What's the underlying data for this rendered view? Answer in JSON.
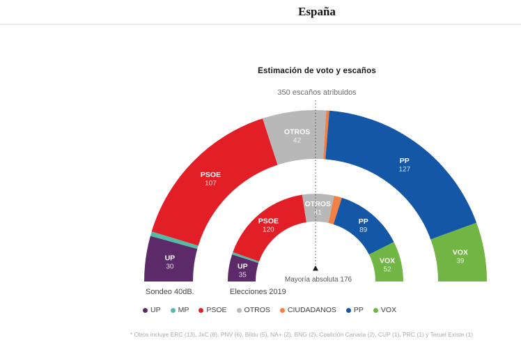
{
  "header": {
    "title": "España"
  },
  "chart_data": {
    "type": "half-donut",
    "title": "Estimación de voto y escaños",
    "subtitle": "350 escaños atribuidos",
    "total_seats": 350,
    "majority_seats": 176,
    "majority_label": "Mayoría absoluta 176",
    "colors": {
      "UP": "#5c2a69",
      "MP": "#56baa5",
      "PSOE": "#e21f26",
      "OTROS": "#b8b8b8",
      "CIUDADANOS": "#f08044",
      "PP": "#1457a6",
      "VOX": "#71b544"
    },
    "rings": [
      {
        "caption": "Sondeo 40dB.",
        "position": "outer",
        "slices": [
          {
            "party": "UP",
            "seats": 30,
            "show_label": true
          },
          {
            "party": "MP",
            "seats": 3,
            "show_label": false
          },
          {
            "party": "PSOE",
            "seats": 107,
            "show_label": true
          },
          {
            "party": "OTROS",
            "seats": 42,
            "show_label": true
          },
          {
            "party": "CIUDADANOS",
            "seats": 2,
            "show_label": false
          },
          {
            "party": "PP",
            "seats": 127,
            "show_label": true
          },
          {
            "party": "VOX",
            "seats": 39,
            "show_label": true
          }
        ]
      },
      {
        "caption": "Elecciones 2019",
        "position": "inner",
        "slices": [
          {
            "party": "UP",
            "seats": 35,
            "show_label": true
          },
          {
            "party": "MP",
            "seats": 3,
            "show_label": false
          },
          {
            "party": "PSOE",
            "seats": 120,
            "show_label": true
          },
          {
            "party": "OTROS",
            "seats": 41,
            "show_label": true
          },
          {
            "party": "CIUDADANOS",
            "seats": 10,
            "show_label": false
          },
          {
            "party": "PP",
            "seats": 89,
            "show_label": true
          },
          {
            "party": "VOX",
            "seats": 52,
            "show_label": true
          }
        ]
      }
    ]
  },
  "legend": {
    "items": [
      {
        "party": "UP",
        "label": "UP"
      },
      {
        "party": "MP",
        "label": "MP"
      },
      {
        "party": "PSOE",
        "label": "PSOE"
      },
      {
        "party": "OTROS",
        "label": "OTROS"
      },
      {
        "party": "CIUDADANOS",
        "label": "CIUDADANOS"
      },
      {
        "party": "PP",
        "label": "PP"
      },
      {
        "party": "VOX",
        "label": "VOX"
      }
    ]
  },
  "footnote": {
    "text": "* Otros incluye ERC (13), JxC (8), PNV (6), Bildu (5), NA+ (2), BNG (2), Coalición Canaria (2), CUP (1), PRC (1) y Teruel Existe (1)"
  }
}
